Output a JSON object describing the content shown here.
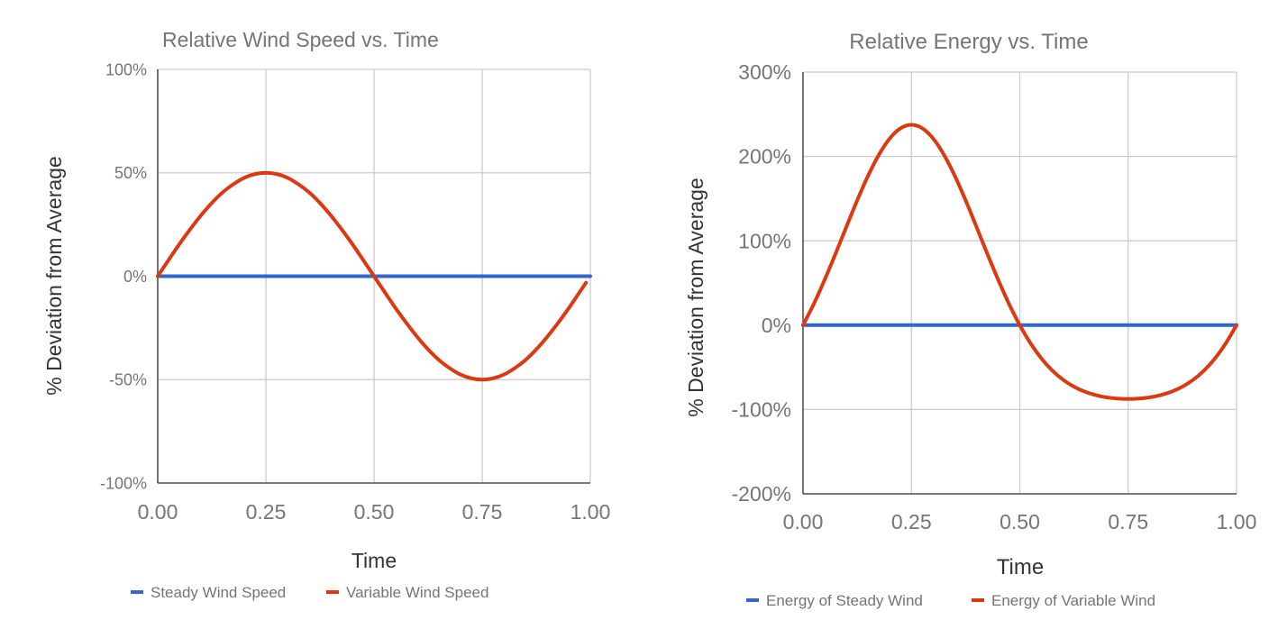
{
  "colors": {
    "steady": "#3366cc",
    "variable": "#dc3912",
    "grid": "#cccccc",
    "axis": "#333333",
    "text": "#757575",
    "axis_title": "#333333"
  },
  "chart_data": [
    {
      "type": "line",
      "title": "Relative Wind Speed vs. Time",
      "xlabel": "Time",
      "ylabel": "% Deviation from Average",
      "xlim": [
        0,
        1
      ],
      "ylim": [
        -100,
        100
      ],
      "xticks": [
        "0.00",
        "0.25",
        "0.50",
        "0.75",
        "1.00"
      ],
      "xtick_values": [
        0,
        0.25,
        0.5,
        0.75,
        1
      ],
      "yticks": [
        "100%",
        "50%",
        "0%",
        "-50%",
        "-100%"
      ],
      "ytick_values": [
        100,
        50,
        0,
        -50,
        -100
      ],
      "grid": true,
      "legend": "bottom",
      "series": [
        {
          "name": "Steady Wind Speed",
          "color": "#3366cc",
          "x": [
            0,
            1
          ],
          "y": [
            0,
            0
          ]
        },
        {
          "name": "Variable Wind Speed",
          "color": "#dc3912",
          "x": [
            0,
            0.025,
            0.05,
            0.075,
            0.1,
            0.125,
            0.15,
            0.175,
            0.2,
            0.225,
            0.25,
            0.275,
            0.3,
            0.325,
            0.35,
            0.375,
            0.4,
            0.425,
            0.45,
            0.475,
            0.5,
            0.525,
            0.55,
            0.575,
            0.6,
            0.625,
            0.65,
            0.675,
            0.7,
            0.725,
            0.75,
            0.775,
            0.8,
            0.825,
            0.85,
            0.875,
            0.9,
            0.925,
            0.95,
            0.975,
            0.99
          ],
          "y": [
            0,
            7.8,
            15.5,
            22.7,
            29.4,
            35.4,
            40.5,
            44.5,
            47.6,
            49.4,
            50,
            49.4,
            47.6,
            44.5,
            40.5,
            35.4,
            29.4,
            22.7,
            15.5,
            7.8,
            0,
            -7.8,
            -15.5,
            -22.7,
            -29.4,
            -35.4,
            -40.5,
            -44.5,
            -47.6,
            -49.4,
            -50,
            -49.4,
            -47.6,
            -44.5,
            -40.5,
            -35.4,
            -29.4,
            -22.7,
            -15.5,
            -7.8,
            -3.1
          ]
        }
      ]
    },
    {
      "type": "line",
      "title": "Relative Energy vs. Time",
      "xlabel": "Time",
      "ylabel": "% Deviation from Average",
      "xlim": [
        0,
        1
      ],
      "ylim": [
        -200,
        300
      ],
      "xticks": [
        "0.00",
        "0.25",
        "0.50",
        "0.75",
        "1.00"
      ],
      "xtick_values": [
        0,
        0.25,
        0.5,
        0.75,
        1
      ],
      "yticks": [
        "300%",
        "200%",
        "100%",
        "0%",
        "-100%",
        "-200%"
      ],
      "ytick_values": [
        300,
        200,
        100,
        0,
        -100,
        -200
      ],
      "grid": true,
      "legend": "bottom",
      "series": [
        {
          "name": "Energy of Steady Wind",
          "color": "#3366cc",
          "x": [
            0,
            1
          ],
          "y": [
            0,
            0
          ]
        },
        {
          "name": "Energy of Variable Wind",
          "color": "#dc3912",
          "x": [
            0,
            0.025,
            0.05,
            0.075,
            0.1,
            0.125,
            0.15,
            0.175,
            0.2,
            0.225,
            0.25,
            0.275,
            0.3,
            0.325,
            0.35,
            0.375,
            0.4,
            0.425,
            0.45,
            0.475,
            0.5,
            0.525,
            0.55,
            0.575,
            0.6,
            0.625,
            0.65,
            0.675,
            0.7,
            0.725,
            0.75,
            0.775,
            0.8,
            0.825,
            0.85,
            0.875,
            0.9,
            0.925,
            0.95,
            0.975,
            1
          ],
          "y": [
            0,
            25.3,
            53.9,
            84.7,
            116.6,
            148.0,
            177.1,
            202.0,
            221.3,
            233.4,
            237.5,
            233.4,
            221.3,
            202.0,
            177.1,
            148.0,
            116.6,
            84.7,
            53.9,
            25.3,
            0,
            -21.7,
            -39.6,
            -53.8,
            -64.8,
            -73.0,
            -78.9,
            -82.9,
            -85.6,
            -87.0,
            -87.5,
            -87.0,
            -85.6,
            -82.9,
            -78.9,
            -73.0,
            -64.8,
            -53.8,
            -39.6,
            -21.7,
            0
          ]
        }
      ]
    }
  ]
}
